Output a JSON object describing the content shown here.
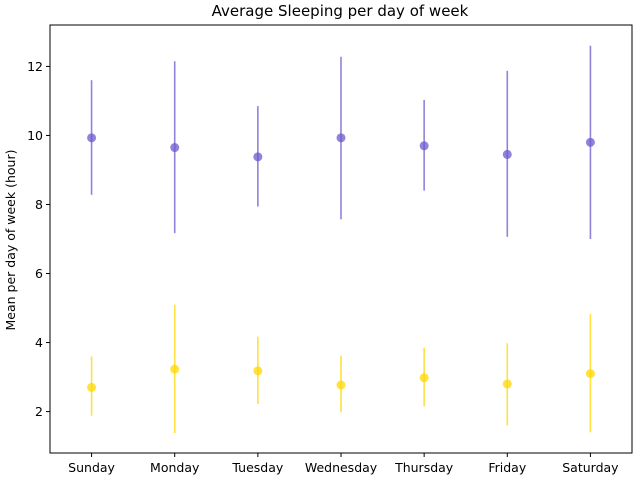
{
  "chart_data": {
    "type": "scatter",
    "title": "Average Sleeping per day of week",
    "xlabel": "",
    "ylabel": "Mean per day of week (hour)",
    "categories": [
      "Sunday",
      "Monday",
      "Tuesday",
      "Wednesday",
      "Thursday",
      "Friday",
      "Saturday"
    ],
    "ylim": [
      0.8,
      13.2
    ],
    "yticks": [
      2,
      4,
      6,
      8,
      10,
      12
    ],
    "grid": false,
    "series": [
      {
        "color": "#6a5acd",
        "values": [
          9.93,
          9.65,
          9.38,
          9.93,
          9.7,
          9.45,
          9.8
        ],
        "err_low": [
          8.28,
          7.17,
          7.94,
          7.57,
          8.4,
          7.06,
          7.0
        ],
        "err_high": [
          11.6,
          12.15,
          10.85,
          12.28,
          11.03,
          11.87,
          12.6
        ]
      },
      {
        "color": "#ffd700",
        "values": [
          2.7,
          3.23,
          3.18,
          2.77,
          2.98,
          2.8,
          3.1
        ],
        "err_low": [
          1.88,
          1.38,
          2.22,
          1.98,
          2.15,
          1.6,
          1.4
        ],
        "err_high": [
          3.6,
          5.1,
          4.17,
          3.62,
          3.85,
          3.98,
          4.83
        ]
      }
    ]
  }
}
